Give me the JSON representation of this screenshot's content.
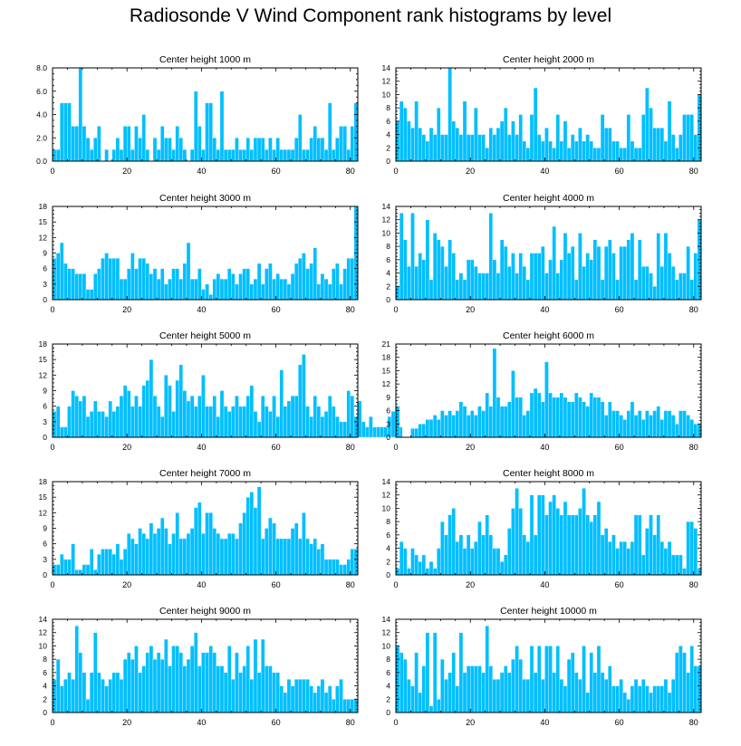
{
  "title": "Radiosonde V Wind Component rank histograms by level",
  "colors": {
    "bar": "#00BFFF",
    "bar_edge": "#ffffff",
    "axis": "#000000",
    "background": "#ffffff"
  },
  "chart_data": [
    {
      "type": "bar",
      "title": "Center height 1000 m",
      "x_start": 0,
      "xlim": [
        0,
        82
      ],
      "xticks": [
        0,
        20,
        40,
        60,
        80
      ],
      "ylim": [
        0,
        8
      ],
      "yticks": [
        0,
        2,
        4,
        6,
        8
      ],
      "ytick_labels": [
        "0.0",
        "2.0",
        "4.0",
        "6.0",
        "8.0"
      ],
      "values": [
        1,
        1,
        5,
        5,
        5,
        3,
        3,
        8,
        3,
        2,
        1,
        2,
        3,
        0,
        1,
        0,
        1,
        2,
        1,
        3,
        3,
        1,
        3,
        2,
        4,
        1,
        0,
        2,
        1,
        3,
        2,
        2,
        1,
        3,
        2,
        1,
        0,
        1,
        6,
        3,
        1,
        5,
        5,
        2,
        1,
        6,
        1,
        1,
        1,
        2,
        1,
        1,
        2,
        1,
        2,
        2,
        2,
        1,
        2,
        1,
        2,
        1,
        1,
        1,
        1,
        2,
        4,
        1,
        1,
        2,
        3,
        2,
        2,
        1,
        5,
        1,
        2,
        3,
        3,
        1,
        3,
        5
      ]
    },
    {
      "type": "bar",
      "title": "Center height 2000 m",
      "x_start": 0,
      "xlim": [
        0,
        82
      ],
      "xticks": [
        0,
        20,
        40,
        60,
        80
      ],
      "ylim": [
        0,
        14
      ],
      "yticks": [
        0,
        2,
        4,
        6,
        8,
        10,
        12,
        14
      ],
      "ytick_labels": [
        "0",
        "2",
        "4",
        "6",
        "8",
        "10",
        "12",
        "14"
      ],
      "values": [
        6,
        9,
        8,
        6,
        5,
        9,
        5,
        4,
        3,
        5,
        4,
        8,
        4,
        4,
        14,
        6,
        5,
        4,
        9,
        4,
        4,
        8,
        4,
        4,
        2,
        5,
        4,
        5,
        6,
        8,
        4,
        6,
        4,
        7,
        3,
        2,
        7,
        11,
        4,
        3,
        5,
        3,
        2,
        7,
        3,
        6,
        2,
        4,
        3,
        5,
        3,
        4,
        3,
        2,
        2,
        7,
        5,
        5,
        3,
        3,
        2,
        2,
        7,
        3,
        2,
        2,
        7,
        11,
        8,
        5,
        5,
        5,
        3,
        9,
        4,
        2,
        4,
        7,
        7,
        7,
        4,
        10
      ]
    },
    {
      "type": "bar",
      "title": "Center height 3000 m",
      "x_start": 0,
      "xlim": [
        0,
        82
      ],
      "xticks": [
        0,
        20,
        40,
        60,
        80
      ],
      "ylim": [
        0,
        18
      ],
      "yticks": [
        0,
        3,
        6,
        9,
        12,
        15,
        18
      ],
      "ytick_labels": [
        "0",
        "3",
        "6",
        "9",
        "12",
        "15",
        "18"
      ],
      "values": [
        8,
        9,
        11,
        7,
        6,
        6,
        5,
        5,
        5,
        2,
        2,
        5,
        6,
        8,
        9,
        8,
        8,
        8,
        4,
        4,
        6,
        9,
        6,
        8,
        8,
        7,
        5,
        6,
        4,
        6,
        3,
        4,
        6,
        6,
        4,
        7,
        11,
        4,
        4,
        6,
        2,
        3,
        1,
        4,
        5,
        4,
        4,
        6,
        5,
        3,
        5,
        6,
        6,
        3,
        4,
        7,
        3,
        6,
        7,
        4,
        5,
        4,
        4,
        3,
        5,
        7,
        8,
        9,
        6,
        7,
        10,
        3,
        5,
        4,
        3,
        6,
        7,
        3,
        6,
        8,
        8,
        18
      ]
    },
    {
      "type": "bar",
      "title": "Center height 4000 m",
      "x_start": 0,
      "xlim": [
        0,
        82
      ],
      "xticks": [
        0,
        20,
        40,
        60,
        80
      ],
      "ylim": [
        0,
        14
      ],
      "yticks": [
        0,
        2,
        4,
        6,
        8,
        10,
        12,
        14
      ],
      "ytick_labels": [
        "0",
        "2",
        "4",
        "6",
        "8",
        "10",
        "12",
        "14"
      ],
      "values": [
        2,
        13,
        9,
        5,
        13,
        5,
        7,
        6,
        12,
        3,
        10,
        9,
        8,
        5,
        9,
        7,
        3,
        4,
        3,
        6,
        6,
        5,
        4,
        4,
        4,
        13,
        6,
        4,
        9,
        8,
        5,
        7,
        4,
        7,
        5,
        3,
        7,
        7,
        7,
        8,
        4,
        6,
        11,
        4,
        6,
        10,
        7,
        8,
        3,
        10,
        5,
        7,
        6,
        9,
        8,
        3,
        8,
        9,
        7,
        3,
        8,
        8,
        9,
        10,
        3,
        9,
        5,
        5,
        4,
        2,
        10,
        5,
        10,
        7,
        5,
        3,
        4,
        4,
        8,
        3,
        7,
        12
      ]
    },
    {
      "type": "bar",
      "title": "Center height 5000 m",
      "x_start": 0,
      "xlim": [
        0,
        82
      ],
      "xticks": [
        0,
        20,
        40,
        60,
        80
      ],
      "ylim": [
        0,
        18
      ],
      "yticks": [
        0,
        3,
        6,
        9,
        12,
        15,
        18
      ],
      "ytick_labels": [
        "0",
        "3",
        "6",
        "9",
        "12",
        "15",
        "18"
      ],
      "values": [
        5,
        6,
        2,
        2,
        6,
        9,
        8,
        7,
        8,
        4,
        5,
        7,
        5,
        5,
        4,
        7,
        5,
        6,
        8,
        10,
        9,
        6,
        8,
        6,
        10,
        11,
        15,
        8,
        6,
        4,
        12,
        10,
        5,
        11,
        14,
        9,
        7,
        8,
        6,
        8,
        12,
        6,
        6,
        8,
        4,
        9,
        6,
        5,
        6,
        8,
        6,
        6,
        8,
        10,
        5,
        3,
        8,
        6,
        5,
        8,
        4,
        13,
        6,
        7,
        8,
        8,
        14,
        16,
        6,
        4,
        8,
        6,
        4,
        5,
        8,
        6,
        4,
        3,
        3,
        9,
        8,
        4,
        7,
        3,
        2,
        4,
        2,
        2,
        2,
        2,
        4,
        5,
        4,
        2
      ]
    },
    {
      "type": "bar",
      "title": "Center height 6000 m",
      "x_start": 0,
      "xlim": [
        0,
        82
      ],
      "xticks": [
        0,
        20,
        40,
        60,
        80
      ],
      "ylim": [
        0,
        21
      ],
      "yticks": [
        0,
        3,
        6,
        9,
        12,
        15,
        18,
        21
      ],
      "ytick_labels": [
        "0",
        "3",
        "6",
        "9",
        "12",
        "15",
        "18",
        "21"
      ],
      "values": [
        7,
        0,
        0,
        0,
        2,
        2,
        3,
        3,
        4,
        4,
        5,
        4,
        6,
        5,
        6,
        5,
        6,
        8,
        7,
        5,
        6,
        5,
        7,
        6,
        10,
        7,
        20,
        9,
        7,
        7,
        8,
        15,
        9,
        9,
        5,
        6,
        10,
        11,
        10,
        8,
        17,
        10,
        9,
        9,
        10,
        9,
        8,
        8,
        10,
        9,
        8,
        7,
        10,
        9,
        9,
        8,
        5,
        8,
        6,
        6,
        5,
        4,
        6,
        8,
        5,
        6,
        4,
        6,
        5,
        6,
        7,
        4,
        6,
        6,
        5,
        3,
        6,
        6,
        5,
        4,
        3,
        3
      ]
    },
    {
      "type": "bar",
      "title": "Center height 7000 m",
      "x_start": 0,
      "xlim": [
        0,
        82
      ],
      "xticks": [
        0,
        20,
        40,
        60,
        80
      ],
      "ylim": [
        0,
        18
      ],
      "yticks": [
        0,
        3,
        6,
        9,
        12,
        15,
        18
      ],
      "ytick_labels": [
        "0",
        "3",
        "6",
        "9",
        "12",
        "15",
        "18"
      ],
      "values": [
        2,
        2,
        4,
        3,
        3,
        6,
        1,
        1,
        2,
        2,
        5,
        1,
        4,
        5,
        5,
        5,
        4,
        6,
        3,
        5,
        8,
        7,
        6,
        9,
        8,
        7,
        10,
        8,
        9,
        11,
        9,
        6,
        8,
        12,
        7,
        7,
        8,
        9,
        13,
        14,
        8,
        12,
        12,
        9,
        8,
        7,
        7,
        8,
        8,
        7,
        10,
        12,
        15,
        16,
        13,
        17,
        7,
        9,
        11,
        10,
        7,
        7,
        7,
        7,
        9,
        10,
        7,
        12,
        7,
        6,
        7,
        5,
        6,
        3,
        3,
        3,
        3,
        2,
        2,
        3,
        5,
        5
      ]
    },
    {
      "type": "bar",
      "title": "Center height 8000 m",
      "x_start": 0,
      "xlim": [
        0,
        82
      ],
      "xticks": [
        0,
        20,
        40,
        60,
        80
      ],
      "ylim": [
        0,
        14
      ],
      "yticks": [
        0,
        2,
        4,
        6,
        8,
        10,
        12,
        14
      ],
      "ytick_labels": [
        "0",
        "2",
        "4",
        "6",
        "8",
        "10",
        "12",
        "14"
      ],
      "values": [
        1,
        5,
        4,
        1,
        4,
        3,
        2,
        3,
        1,
        2,
        1,
        4,
        8,
        6,
        9,
        10,
        5,
        6,
        4,
        6,
        4,
        5,
        8,
        6,
        9,
        6,
        4,
        4,
        2,
        3,
        7,
        10,
        13,
        10,
        6,
        5,
        12,
        6,
        12,
        12,
        9,
        11,
        12,
        10,
        9,
        11,
        9,
        9,
        9,
        10,
        13,
        9,
        8,
        9,
        11,
        6,
        7,
        5,
        6,
        4,
        5,
        5,
        4,
        5,
        9,
        9,
        3,
        7,
        9,
        6,
        9,
        5,
        4,
        5,
        3,
        3,
        3,
        1,
        8,
        8,
        7,
        1
      ]
    },
    {
      "type": "bar",
      "title": "Center height 9000 m",
      "x_start": 0,
      "xlim": [
        0,
        82
      ],
      "xticks": [
        0,
        20,
        40,
        60,
        80
      ],
      "ylim": [
        0,
        14
      ],
      "yticks": [
        0,
        2,
        4,
        6,
        8,
        10,
        12,
        14
      ],
      "ytick_labels": [
        "0",
        "2",
        "4",
        "6",
        "8",
        "10",
        "12",
        "14"
      ],
      "values": [
        5,
        8,
        4,
        5,
        6,
        5,
        13,
        9,
        6,
        2,
        6,
        12,
        6,
        5,
        4,
        5,
        6,
        6,
        5,
        8,
        9,
        8,
        10,
        6,
        7,
        9,
        10,
        8,
        9,
        8,
        11,
        7,
        10,
        10,
        9,
        7,
        8,
        10,
        12,
        7,
        9,
        9,
        10,
        9,
        7,
        7,
        6,
        10,
        5,
        9,
        6,
        7,
        10,
        5,
        11,
        6,
        11,
        7,
        7,
        6,
        6,
        4,
        3,
        5,
        4,
        5,
        5,
        5,
        5,
        4,
        3,
        4,
        5,
        3,
        4,
        2,
        4,
        5,
        2,
        2,
        2,
        2
      ]
    },
    {
      "type": "bar",
      "title": "Center height 10000 m",
      "x_start": 0,
      "xlim": [
        0,
        82
      ],
      "xticks": [
        0,
        20,
        40,
        60,
        80
      ],
      "ylim": [
        0,
        14
      ],
      "yticks": [
        0,
        2,
        4,
        6,
        8,
        10,
        12,
        14
      ],
      "ytick_labels": [
        "0",
        "2",
        "4",
        "6",
        "8",
        "10",
        "12",
        "14"
      ],
      "values": [
        10,
        9,
        8,
        5,
        4,
        9,
        3,
        7,
        12,
        1,
        12,
        2,
        8,
        5,
        6,
        9,
        4,
        12,
        6,
        7,
        7,
        7,
        7,
        6,
        13,
        7,
        5,
        5,
        6,
        7,
        6,
        8,
        10,
        8,
        5,
        5,
        10,
        6,
        10,
        5,
        10,
        10,
        6,
        10,
        5,
        4,
        8,
        9,
        6,
        5,
        10,
        3,
        9,
        6,
        10,
        6,
        5,
        7,
        4,
        4,
        5,
        3,
        2,
        4,
        5,
        4,
        5,
        4,
        3,
        4,
        4,
        4,
        5,
        3,
        5,
        9,
        10,
        9,
        6,
        10,
        7,
        7
      ]
    }
  ]
}
